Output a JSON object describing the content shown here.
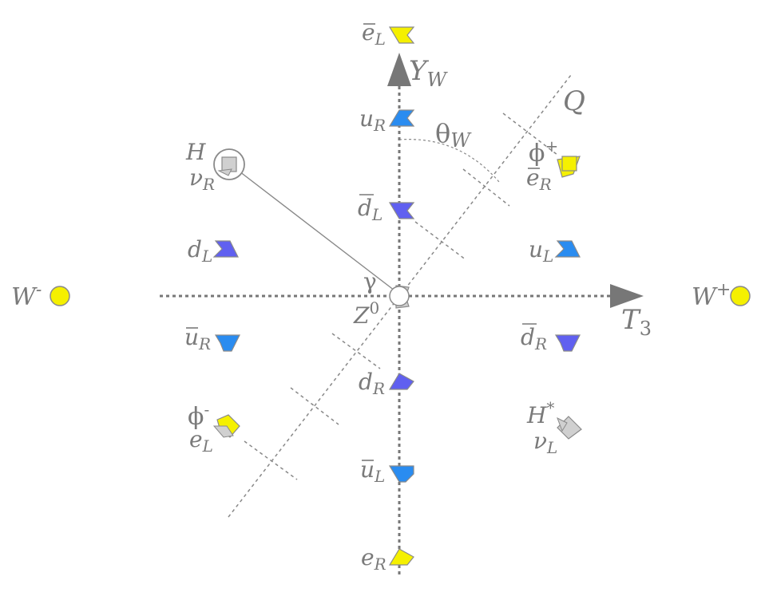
{
  "axes": {
    "vertical": {
      "label": "Y",
      "sub": "W"
    },
    "horizontal": {
      "label": "T",
      "sub": "3"
    },
    "diagonal": {
      "label": "Q"
    },
    "angle": {
      "symbol": "θ",
      "sub": "W"
    }
  },
  "bosons": {
    "w_minus": {
      "base": "W",
      "sup": "-"
    },
    "w_plus": {
      "base": "W",
      "sup": "+"
    },
    "photon": {
      "label": "γ"
    },
    "z0": {
      "base": "Z",
      "sup": "0"
    }
  },
  "particles": {
    "ebar_L": {
      "base": "e",
      "bar": true,
      "sub": "L"
    },
    "u_R": {
      "base": "u",
      "sub": "R"
    },
    "dbar_L": {
      "base": "d",
      "bar": true,
      "sub": "L"
    },
    "d_L": {
      "base": "d",
      "sub": "L"
    },
    "u_L": {
      "base": "u",
      "sub": "L"
    },
    "ubar_R": {
      "base": "u",
      "bar": true,
      "sub": "R"
    },
    "dbar_R": {
      "base": "d",
      "bar": true,
      "sub": "R"
    },
    "d_R": {
      "base": "d",
      "sub": "R"
    },
    "ubar_L": {
      "base": "u",
      "bar": true,
      "sub": "L"
    },
    "e_R": {
      "base": "e",
      "sub": "R"
    },
    "e_L": {
      "base": "e",
      "sub": "L"
    },
    "ebar_R": {
      "base": "e",
      "bar": true,
      "sub": "R"
    }
  },
  "higgs": {
    "H": {
      "base": "H"
    },
    "nu_R": {
      "base": "ν",
      "sub": "R"
    },
    "phi_plus": {
      "base": "ϕ",
      "sup": "+"
    },
    "phi_minus": {
      "base": "ϕ",
      "sup": "-"
    },
    "H_star": {
      "base": "H",
      "sup": "*"
    },
    "nu_L": {
      "base": "ν",
      "sub": "L"
    }
  },
  "colors": {
    "axis": "#777777",
    "yellow": "#f5f000",
    "blue": "#2a8cf0",
    "purple": "#6060f0",
    "gray": "#d0d0d0",
    "outline": "#8a8a8a"
  }
}
